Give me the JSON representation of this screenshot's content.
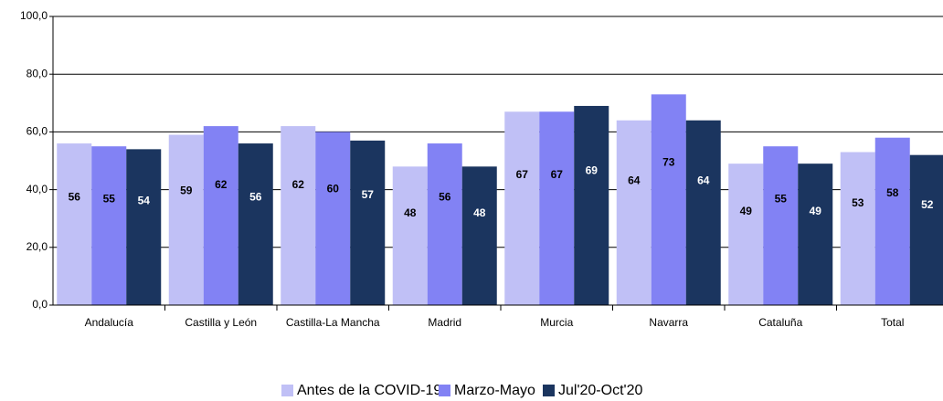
{
  "chart_data": {
    "type": "bar",
    "categories": [
      "Andalucía",
      "Castilla y León",
      "Castilla-La Mancha",
      "Madrid",
      "Murcia",
      "Navarra",
      "Cataluña",
      "Total"
    ],
    "series": [
      {
        "name": "Antes de la COVID-19",
        "color": "#c0c0f6",
        "values": [
          56,
          59,
          62,
          48,
          67,
          64,
          49,
          53
        ]
      },
      {
        "name": "Marzo-Mayo",
        "color": "#8282f4",
        "values": [
          55,
          62,
          60,
          56,
          67,
          73,
          55,
          58
        ]
      },
      {
        "name": "Jul'20-Oct'20",
        "color": "#1b355f",
        "values": [
          54,
          56,
          57,
          48,
          69,
          64,
          49,
          52
        ]
      }
    ],
    "ylim": [
      0,
      100
    ],
    "yticks": [
      {
        "value": 0,
        "label": "0,0"
      },
      {
        "value": 20,
        "label": "20,0"
      },
      {
        "value": 40,
        "label": "40,0"
      },
      {
        "value": 60,
        "label": "60,0"
      },
      {
        "value": 80,
        "label": "80,0"
      },
      {
        "value": 100,
        "label": "100,0"
      }
    ],
    "grid": true,
    "legend": "bottom"
  }
}
